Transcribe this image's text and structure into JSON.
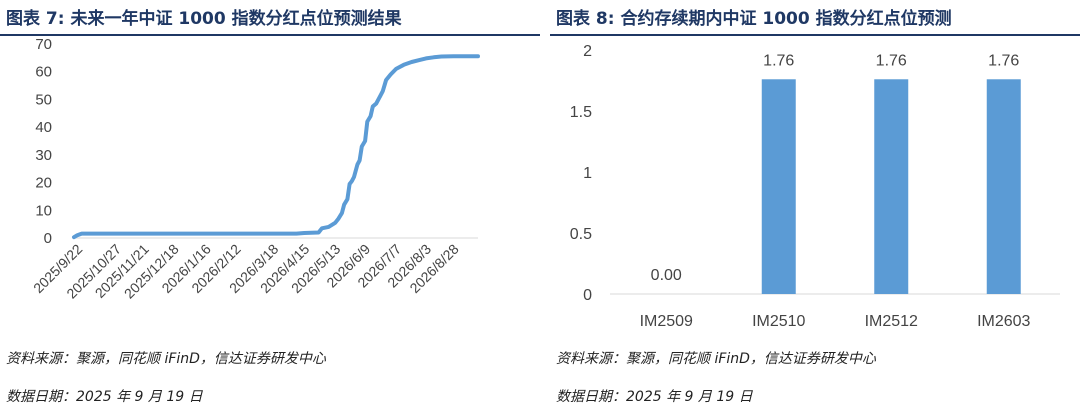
{
  "left_panel": {
    "title": "图表 7:  未来一年中证 1000 指数分红点位预测结果",
    "source": "资料来源：聚源，同花顺 iFinD，信达证券研发中心",
    "date": "数据日期：2025 年 9 月 19 日"
  },
  "right_panel": {
    "title": "图表 8:  合约存续期内中证 1000 指数分红点位预测",
    "source": "资料来源：聚源，同花顺 iFinD，信达证券研发中心",
    "date": "数据日期：2025 年 9 月 19 日"
  },
  "colors": {
    "series": "#5b9bd5",
    "title": "#1f3864",
    "axis": "#d9d9d9"
  },
  "chart_data": [
    {
      "type": "line",
      "ylim": [
        0,
        70
      ],
      "yticks": [
        0,
        10,
        20,
        30,
        40,
        50,
        60,
        70
      ],
      "xlim": [
        "2025-09-19",
        "2026-09-19"
      ],
      "xticks": [
        "2025/9/22",
        "2025/10/27",
        "2025/11/21",
        "2025/12/18",
        "2026/1/16",
        "2026/2/12",
        "2026/3/18",
        "2026/4/15",
        "2026/5/13",
        "2026/6/9",
        "2026/7/7",
        "2026/8/3",
        "2026/8/28"
      ],
      "grid": false,
      "series": [
        {
          "points": [
            [
              "2025-09-19",
              0.3
            ],
            [
              "2025-09-22",
              1.0
            ],
            [
              "2025-09-26",
              1.6
            ],
            [
              "2025-10-27",
              1.6
            ],
            [
              "2025-12-18",
              1.6
            ],
            [
              "2026-03-18",
              1.6
            ],
            [
              "2026-04-08",
              1.6
            ],
            [
              "2026-04-15",
              1.8
            ],
            [
              "2026-04-28",
              2.0
            ],
            [
              "2026-05-01",
              3.5
            ],
            [
              "2026-05-07",
              4.0
            ],
            [
              "2026-05-13",
              5.5
            ],
            [
              "2026-05-16",
              7.0
            ],
            [
              "2026-05-19",
              9.0
            ],
            [
              "2026-05-21",
              12.0
            ],
            [
              "2026-05-24",
              14.0
            ],
            [
              "2026-05-26",
              19.5
            ],
            [
              "2026-05-28",
              20.5
            ],
            [
              "2026-05-30",
              22.0
            ],
            [
              "2026-06-02",
              26.5
            ],
            [
              "2026-06-04",
              28.0
            ],
            [
              "2026-06-06",
              33.0
            ],
            [
              "2026-06-09",
              35.0
            ],
            [
              "2026-06-11",
              42.0
            ],
            [
              "2026-06-14",
              44.0
            ],
            [
              "2026-06-16",
              47.5
            ],
            [
              "2026-06-19",
              48.5
            ],
            [
              "2026-06-23",
              51.5
            ],
            [
              "2026-06-25",
              53.0
            ],
            [
              "2026-06-28",
              57.0
            ],
            [
              "2026-07-02",
              59.0
            ],
            [
              "2026-07-07",
              61.0
            ],
            [
              "2026-07-14",
              62.5
            ],
            [
              "2026-07-21",
              63.5
            ],
            [
              "2026-07-28",
              64.2
            ],
            [
              "2026-08-03",
              64.8
            ],
            [
              "2026-08-10",
              65.2
            ],
            [
              "2026-08-17",
              65.5
            ],
            [
              "2026-08-28",
              65.6
            ],
            [
              "2026-09-19",
              65.6
            ]
          ]
        }
      ]
    },
    {
      "type": "bar",
      "categories": [
        "IM2509",
        "IM2510",
        "IM2512",
        "IM2603"
      ],
      "values": [
        0.0,
        1.76,
        1.76,
        1.76
      ],
      "labels": [
        "0.00",
        "1.76",
        "1.76",
        "1.76"
      ],
      "ylim": [
        0,
        2
      ],
      "yticks": [
        0,
        0.5,
        1,
        1.5,
        2
      ],
      "ytick_labels": [
        "0",
        "0.5",
        "1",
        "1.5",
        "2"
      ],
      "grid": false
    }
  ]
}
